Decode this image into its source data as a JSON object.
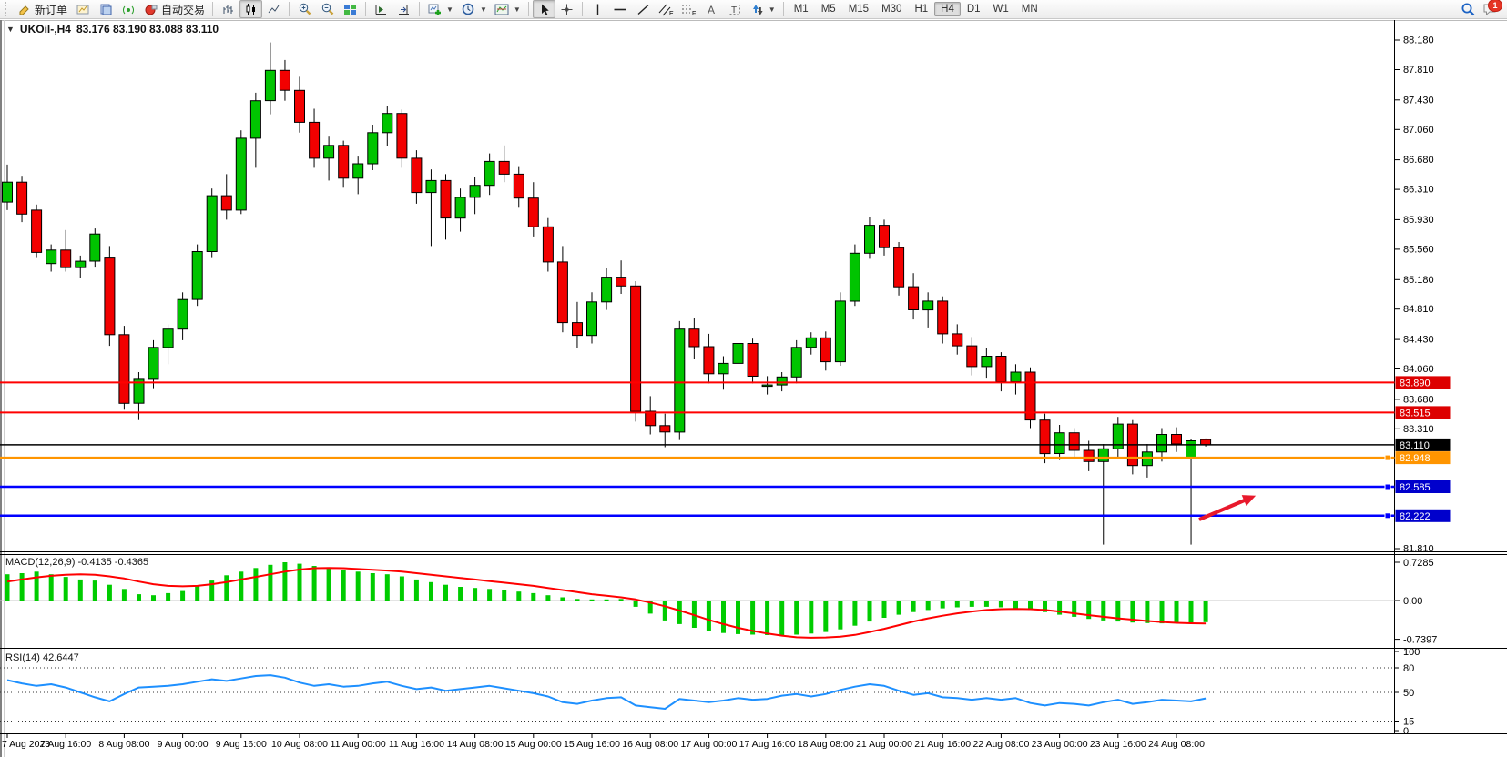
{
  "toolbar": {
    "new_order_label": "新订单",
    "auto_trading_label": "自动交易",
    "timeframes": [
      "M1",
      "M5",
      "M15",
      "M30",
      "H1",
      "H4",
      "D1",
      "W1",
      "MN"
    ],
    "active_timeframe": "H4",
    "chat_badge_count": "1"
  },
  "chart_header": {
    "title": "UKOil-,H4",
    "ohlc": "83.176 83.190 83.088 83.110"
  },
  "chart_data": {
    "type": "candlestick",
    "symbol": "UKOil-",
    "period": "H4",
    "last_bar": {
      "open": "83.176",
      "high": "83.190",
      "low": "83.088",
      "close": "83.110"
    },
    "y_ticks": [
      88.18,
      87.81,
      87.43,
      87.06,
      86.68,
      86.31,
      85.93,
      85.56,
      85.18,
      84.81,
      84.43,
      84.06,
      83.68,
      83.31,
      81.81
    ],
    "x_labels": [
      "7 Aug 2023",
      "7 Aug 16:00",
      "8 Aug 08:00",
      "9 Aug 00:00",
      "9 Aug 16:00",
      "10 Aug 08:00",
      "11 Aug 00:00",
      "11 Aug 16:00",
      "14 Aug 08:00",
      "15 Aug 00:00",
      "15 Aug 16:00",
      "16 Aug 08:00",
      "17 Aug 00:00",
      "17 Aug 16:00",
      "18 Aug 08:00",
      "21 Aug 00:00",
      "21 Aug 16:00",
      "22 Aug 08:00",
      "23 Aug 00:00",
      "23 Aug 16:00",
      "24 Aug 08:00"
    ],
    "levels": [
      {
        "price": 83.89,
        "line_color": "#ff0000",
        "badge_color": "#dd0000",
        "width": 2,
        "handle": false,
        "name": "resistance-upper"
      },
      {
        "price": 83.515,
        "line_color": "#ff0000",
        "badge_color": "#dd0000",
        "width": 2,
        "handle": false,
        "name": "resistance-lower"
      },
      {
        "price": 83.11,
        "line_color": "#000000",
        "badge_color": "#000000",
        "width": 1.5,
        "handle": false,
        "name": "current-price"
      },
      {
        "price": 82.948,
        "line_color": "#ff9500",
        "badge_color": "#ff9500",
        "width": 2.5,
        "handle": true,
        "name": "support-orange"
      },
      {
        "price": 82.585,
        "line_color": "#0000ff",
        "badge_color": "#0000cc",
        "width": 2.5,
        "handle": true,
        "name": "support-blue-1"
      },
      {
        "price": 82.222,
        "line_color": "#0000ff",
        "badge_color": "#0000cc",
        "width": 2.5,
        "handle": true,
        "name": "support-blue-2"
      }
    ],
    "arrow": {
      "from": [
        1317,
        571
      ],
      "to": [
        1369,
        549
      ],
      "color": "#e8192c"
    },
    "candles": [
      [
        86.15,
        86.62,
        86.05,
        86.4
      ],
      [
        86.4,
        86.48,
        85.9,
        86.0
      ],
      [
        86.05,
        86.12,
        85.45,
        85.52
      ],
      [
        85.38,
        85.62,
        85.28,
        85.55
      ],
      [
        85.55,
        85.8,
        85.28,
        85.33
      ],
      [
        85.33,
        85.48,
        85.2,
        85.41
      ],
      [
        85.41,
        85.82,
        85.33,
        85.75
      ],
      [
        85.45,
        85.6,
        84.35,
        84.49
      ],
      [
        84.49,
        84.6,
        83.55,
        83.63
      ],
      [
        83.63,
        84.02,
        83.42,
        83.93
      ],
      [
        83.93,
        84.42,
        83.82,
        84.33
      ],
      [
        84.33,
        84.62,
        84.12,
        84.56
      ],
      [
        84.56,
        85.02,
        84.42,
        84.93
      ],
      [
        84.93,
        85.62,
        84.85,
        85.53
      ],
      [
        85.53,
        86.32,
        85.45,
        86.23
      ],
      [
        86.23,
        86.5,
        85.93,
        86.05
      ],
      [
        86.05,
        87.05,
        86.0,
        86.95
      ],
      [
        86.95,
        87.52,
        86.58,
        87.42
      ],
      [
        87.42,
        88.15,
        87.25,
        87.8
      ],
      [
        87.8,
        87.93,
        87.42,
        87.55
      ],
      [
        87.55,
        87.72,
        87.02,
        87.15
      ],
      [
        87.15,
        87.32,
        86.58,
        86.7
      ],
      [
        86.7,
        86.97,
        86.42,
        86.86
      ],
      [
        86.86,
        86.92,
        86.33,
        86.45
      ],
      [
        86.45,
        86.72,
        86.25,
        86.63
      ],
      [
        86.63,
        87.12,
        86.55,
        87.02
      ],
      [
        87.02,
        87.36,
        86.85,
        87.26
      ],
      [
        87.26,
        87.31,
        86.58,
        86.7
      ],
      [
        86.7,
        86.8,
        86.13,
        86.27
      ],
      [
        86.27,
        86.56,
        85.6,
        86.42
      ],
      [
        86.42,
        86.5,
        85.68,
        85.95
      ],
      [
        85.95,
        86.32,
        85.78,
        86.21
      ],
      [
        86.21,
        86.46,
        86.0,
        86.36
      ],
      [
        86.36,
        86.76,
        86.24,
        86.66
      ],
      [
        86.66,
        86.86,
        86.4,
        86.5
      ],
      [
        86.5,
        86.6,
        86.08,
        86.2
      ],
      [
        86.2,
        86.4,
        85.72,
        85.84
      ],
      [
        85.84,
        85.95,
        85.28,
        85.4
      ],
      [
        85.4,
        85.6,
        84.52,
        84.64
      ],
      [
        84.64,
        84.9,
        84.32,
        84.48
      ],
      [
        84.48,
        85.02,
        84.38,
        84.9
      ],
      [
        84.9,
        85.32,
        84.8,
        85.21
      ],
      [
        85.21,
        85.42,
        85.0,
        85.1
      ],
      [
        85.1,
        85.16,
        83.4,
        83.53
      ],
      [
        83.53,
        83.72,
        83.24,
        83.35
      ],
      [
        83.35,
        83.5,
        83.08,
        83.27
      ],
      [
        83.27,
        84.66,
        83.17,
        84.56
      ],
      [
        84.56,
        84.7,
        84.18,
        84.34
      ],
      [
        84.34,
        84.5,
        83.88,
        84.0
      ],
      [
        84.0,
        84.22,
        83.8,
        84.13
      ],
      [
        84.13,
        84.46,
        84.02,
        84.38
      ],
      [
        84.38,
        84.44,
        83.88,
        83.97
      ],
      [
        83.85,
        83.97,
        83.74,
        83.86
      ],
      [
        83.86,
        84.02,
        83.78,
        83.96
      ],
      [
        83.96,
        84.42,
        83.88,
        84.33
      ],
      [
        84.33,
        84.52,
        84.24,
        84.45
      ],
      [
        84.45,
        84.53,
        84.04,
        84.15
      ],
      [
        84.15,
        85.02,
        84.1,
        84.91
      ],
      [
        84.91,
        85.62,
        84.85,
        85.51
      ],
      [
        85.51,
        85.96,
        85.44,
        85.86
      ],
      [
        85.86,
        85.93,
        85.48,
        85.58
      ],
      [
        85.58,
        85.65,
        84.98,
        85.09
      ],
      [
        85.09,
        85.26,
        84.68,
        84.8
      ],
      [
        84.8,
        85.02,
        84.58,
        84.91
      ],
      [
        84.91,
        84.97,
        84.38,
        84.5
      ],
      [
        84.5,
        84.62,
        84.24,
        84.35
      ],
      [
        84.35,
        84.46,
        83.98,
        84.09
      ],
      [
        84.09,
        84.32,
        83.94,
        84.22
      ],
      [
        84.22,
        84.27,
        83.78,
        83.9
      ],
      [
        83.9,
        84.12,
        83.74,
        84.02
      ],
      [
        84.02,
        84.08,
        83.32,
        83.42
      ],
      [
        83.42,
        83.5,
        82.88,
        83.0
      ],
      [
        83.0,
        83.36,
        82.92,
        83.26
      ],
      [
        83.26,
        83.32,
        82.93,
        83.04
      ],
      [
        83.04,
        83.16,
        82.78,
        82.9
      ],
      [
        82.9,
        83.12,
        81.86,
        83.06
      ],
      [
        83.06,
        83.46,
        82.96,
        83.37
      ],
      [
        83.37,
        83.42,
        82.74,
        82.85
      ],
      [
        82.85,
        83.12,
        82.7,
        83.02
      ],
      [
        83.02,
        83.32,
        82.9,
        83.24
      ],
      [
        83.24,
        83.33,
        83.02,
        83.12
      ],
      [
        82.95,
        83.18,
        81.86,
        83.16
      ],
      [
        83.176,
        83.19,
        83.088,
        83.11
      ]
    ],
    "macd": {
      "label": "MACD(12,26,9)",
      "values_text": "-0.4135 -0.4365",
      "scale": [
        0.7285,
        0,
        -0.7397
      ],
      "histogram": [
        0.5,
        0.52,
        0.55,
        0.5,
        0.45,
        0.4,
        0.38,
        0.3,
        0.22,
        0.12,
        0.1,
        0.14,
        0.18,
        0.28,
        0.38,
        0.48,
        0.55,
        0.62,
        0.68,
        0.7285,
        0.7,
        0.66,
        0.62,
        0.58,
        0.55,
        0.52,
        0.5,
        0.46,
        0.4,
        0.35,
        0.3,
        0.26,
        0.24,
        0.22,
        0.2,
        0.17,
        0.14,
        0.1,
        0.06,
        0.03,
        0.02,
        0.02,
        0.03,
        -0.12,
        -0.25,
        -0.38,
        -0.45,
        -0.52,
        -0.58,
        -0.62,
        -0.64,
        -0.65,
        -0.66,
        -0.66,
        -0.65,
        -0.63,
        -0.6,
        -0.55,
        -0.48,
        -0.4,
        -0.33,
        -0.27,
        -0.22,
        -0.18,
        -0.15,
        -0.13,
        -0.12,
        -0.12,
        -0.13,
        -0.15,
        -0.18,
        -0.22,
        -0.27,
        -0.31,
        -0.35,
        -0.38,
        -0.4,
        -0.42,
        -0.43,
        -0.435,
        -0.43,
        -0.42,
        -0.4135
      ],
      "signal": [
        0.36,
        0.4,
        0.44,
        0.47,
        0.49,
        0.5,
        0.49,
        0.46,
        0.42,
        0.36,
        0.31,
        0.28,
        0.27,
        0.28,
        0.31,
        0.35,
        0.4,
        0.45,
        0.5,
        0.55,
        0.59,
        0.615,
        0.62,
        0.615,
        0.6,
        0.585,
        0.57,
        0.55,
        0.52,
        0.49,
        0.46,
        0.43,
        0.4,
        0.37,
        0.34,
        0.31,
        0.28,
        0.24,
        0.2,
        0.16,
        0.12,
        0.09,
        0.06,
        0.02,
        -0.04,
        -0.11,
        -0.19,
        -0.28,
        -0.37,
        -0.45,
        -0.52,
        -0.58,
        -0.63,
        -0.67,
        -0.7,
        -0.71,
        -0.705,
        -0.69,
        -0.655,
        -0.6,
        -0.54,
        -0.47,
        -0.4,
        -0.34,
        -0.29,
        -0.245,
        -0.21,
        -0.18,
        -0.165,
        -0.16,
        -0.165,
        -0.18,
        -0.21,
        -0.245,
        -0.28,
        -0.31,
        -0.34,
        -0.365,
        -0.39,
        -0.41,
        -0.425,
        -0.433,
        -0.4365
      ]
    },
    "rsi": {
      "label": "RSI(14)",
      "value_text": "42.6447",
      "scale": [
        100,
        80,
        50,
        15,
        0
      ],
      "values": [
        65,
        61,
        58,
        60,
        56,
        50,
        44,
        39,
        48,
        56,
        57,
        58,
        60,
        63,
        66,
        64,
        67,
        70,
        71,
        68,
        62,
        58,
        60,
        57,
        58,
        61,
        63,
        58,
        54,
        56,
        52,
        54,
        56,
        58,
        55,
        52,
        49,
        45,
        38,
        36,
        40,
        43,
        44,
        34,
        32,
        30,
        42,
        40,
        38,
        40,
        43,
        41,
        42,
        46,
        48,
        45,
        48,
        53,
        57,
        60,
        58,
        52,
        47,
        49,
        44,
        43,
        41,
        43,
        41,
        43,
        37,
        34,
        37,
        36,
        34,
        38,
        41,
        36,
        38,
        41,
        40,
        39,
        42.64
      ]
    },
    "colors": {
      "bull": "#00c400",
      "bear": "#f20000",
      "wick": "#000000",
      "rsi_line": "#1e90ff",
      "macd_hist": "#00cc00",
      "macd_signal": "#ff0000"
    }
  }
}
